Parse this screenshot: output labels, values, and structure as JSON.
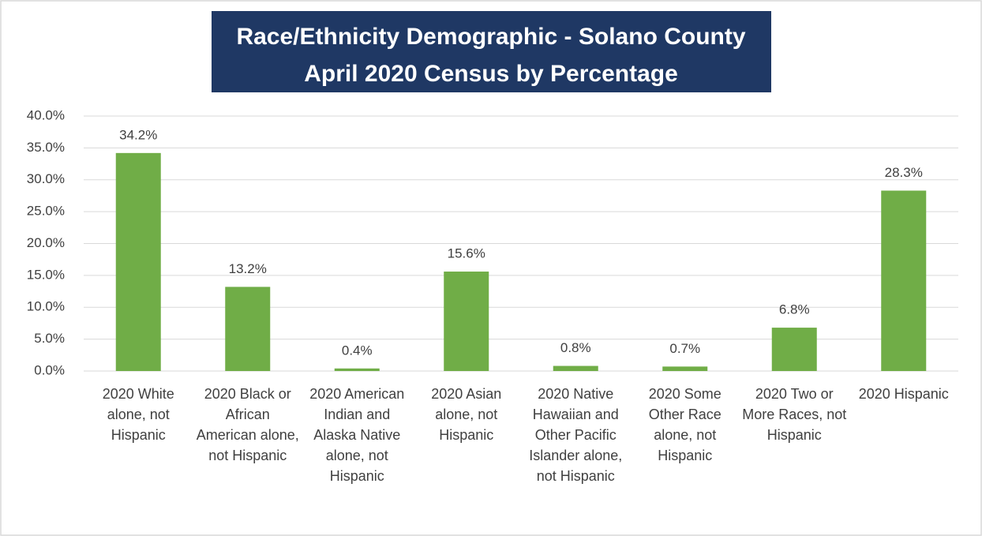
{
  "chart_data": {
    "type": "bar",
    "title": [
      "Race/Ethnicity Demographic - Solano County",
      "April 2020 Census by Percentage"
    ],
    "categories": [
      "2020 White alone, not Hispanic",
      "2020 Black or African American alone, not Hispanic",
      "2020 American Indian and Alaska Native alone, not Hispanic",
      "2020 Asian alone, not Hispanic",
      "2020 Native Hawaiian and Other Pacific Islander alone, not Hispanic",
      "2020 Some Other Race alone, not Hispanic",
      "2020 Two or More Races, not Hispanic",
      "2020 Hispanic"
    ],
    "values": [
      34.2,
      13.2,
      0.4,
      15.6,
      0.8,
      0.7,
      6.8,
      28.3
    ],
    "value_labels": [
      "34.2%",
      "13.2%",
      "0.4%",
      "15.6%",
      "0.8%",
      "0.7%",
      "6.8%",
      "28.3%"
    ],
    "color": "#70ad47",
    "ylim": [
      0,
      40
    ],
    "yticks": [
      {
        "value": 0,
        "label": "0.0%"
      },
      {
        "value": 5,
        "label": "5.0%"
      },
      {
        "value": 10,
        "label": "10.0%"
      },
      {
        "value": 15,
        "label": "15.0%"
      },
      {
        "value": 20,
        "label": "20.0%"
      },
      {
        "value": 25,
        "label": "25.0%"
      },
      {
        "value": 30,
        "label": "30.0%"
      },
      {
        "value": 35,
        "label": "35.0%"
      },
      {
        "value": 40,
        "label": "40.0%"
      }
    ],
    "grid": true
  }
}
